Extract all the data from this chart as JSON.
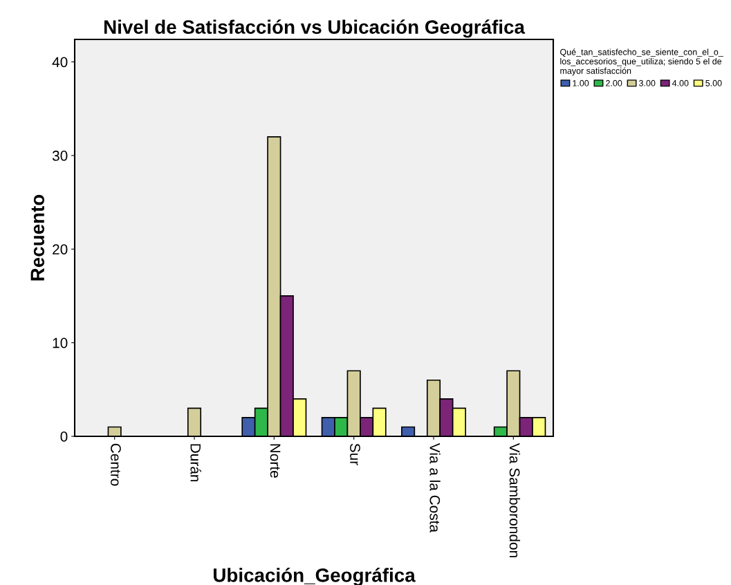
{
  "chart_data": {
    "type": "bar",
    "title": "Nivel de Satisfacción vs Ubicación Geográfica",
    "xlabel": "Ubicación_Geográfica",
    "ylabel": "Recuento",
    "legend_title": "Qué_tan_satisfecho_se_siente_con_el_o_\nlos_accesorios_que_utiliza; siendo 5 el de\nmayor satisfacción",
    "categories": [
      "Centro",
      "Durán",
      "Norte",
      "Sur",
      "Via a la Costa",
      "Via Samborondon"
    ],
    "series": [
      {
        "name": "1.00",
        "color": "#3f5fad",
        "values": [
          null,
          null,
          2,
          2,
          1,
          null
        ]
      },
      {
        "name": "2.00",
        "color": "#2eb84a",
        "values": [
          null,
          null,
          3,
          2,
          null,
          1
        ]
      },
      {
        "name": "3.00",
        "color": "#d4cf9a",
        "values": [
          1,
          3,
          32,
          7,
          6,
          7
        ]
      },
      {
        "name": "4.00",
        "color": "#7b2478",
        "values": [
          null,
          null,
          15,
          2,
          4,
          2
        ]
      },
      {
        "name": "5.00",
        "color": "#ffff80",
        "values": [
          null,
          null,
          4,
          3,
          3,
          2
        ]
      }
    ],
    "ylim": [
      0,
      42.4
    ],
    "yticks": [
      0,
      10,
      20,
      30,
      40
    ],
    "grid": false,
    "legend": "top right"
  }
}
